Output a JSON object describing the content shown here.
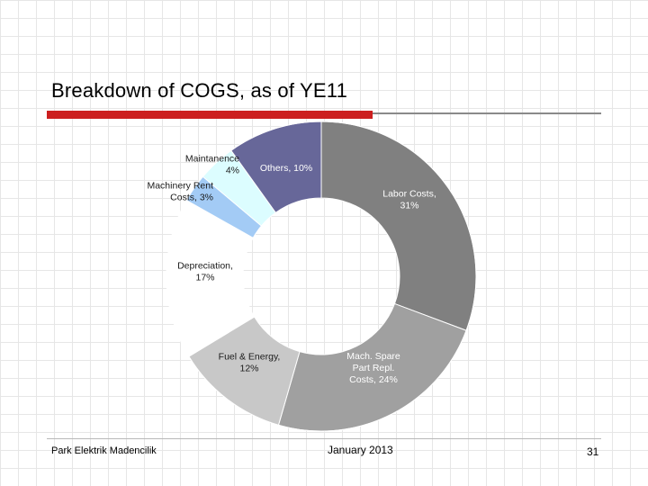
{
  "slide": {
    "title": "Breakdown of COGS, as of YE11",
    "footer_left": "Park Elektrik Madencilik",
    "footer_center": "January 2013",
    "page_number": "31"
  },
  "chart_data": {
    "type": "pie",
    "subtype": "donut",
    "title": "Breakdown of COGS, as of YE11",
    "slices": [
      {
        "label": [
          "Labor Costs,",
          "31%"
        ],
        "value": 31,
        "color": "#808080",
        "text_color": "#ffffff"
      },
      {
        "label": [
          "Mach. Spare",
          "Part Repl.",
          "Costs, 24%"
        ],
        "value": 24,
        "color": "#a0a0a0",
        "text_color": "#ffffff"
      },
      {
        "label": [
          "Fuel & Energy,",
          "12%"
        ],
        "value": 12,
        "color": "#c8c8c8",
        "text_color": "#1a1a1a"
      },
      {
        "label": [
          "Depreciation,",
          "17%"
        ],
        "value": 17,
        "color": "#ffffff",
        "text_color": "#1a1a1a"
      },
      {
        "label": [
          "Machinery Rent",
          "Costs, 3%"
        ],
        "value": 3,
        "color": "#a3cbf5",
        "text_color": "#1a1a1a"
      },
      {
        "label": [
          "Maintanence",
          "4%"
        ],
        "value": 4,
        "color": "#dcfdff",
        "text_color": "#1a1a1a"
      },
      {
        "label": [
          "Others, 10%"
        ],
        "value": 10,
        "color": "#676799",
        "text_color": "#ffffff"
      }
    ]
  }
}
